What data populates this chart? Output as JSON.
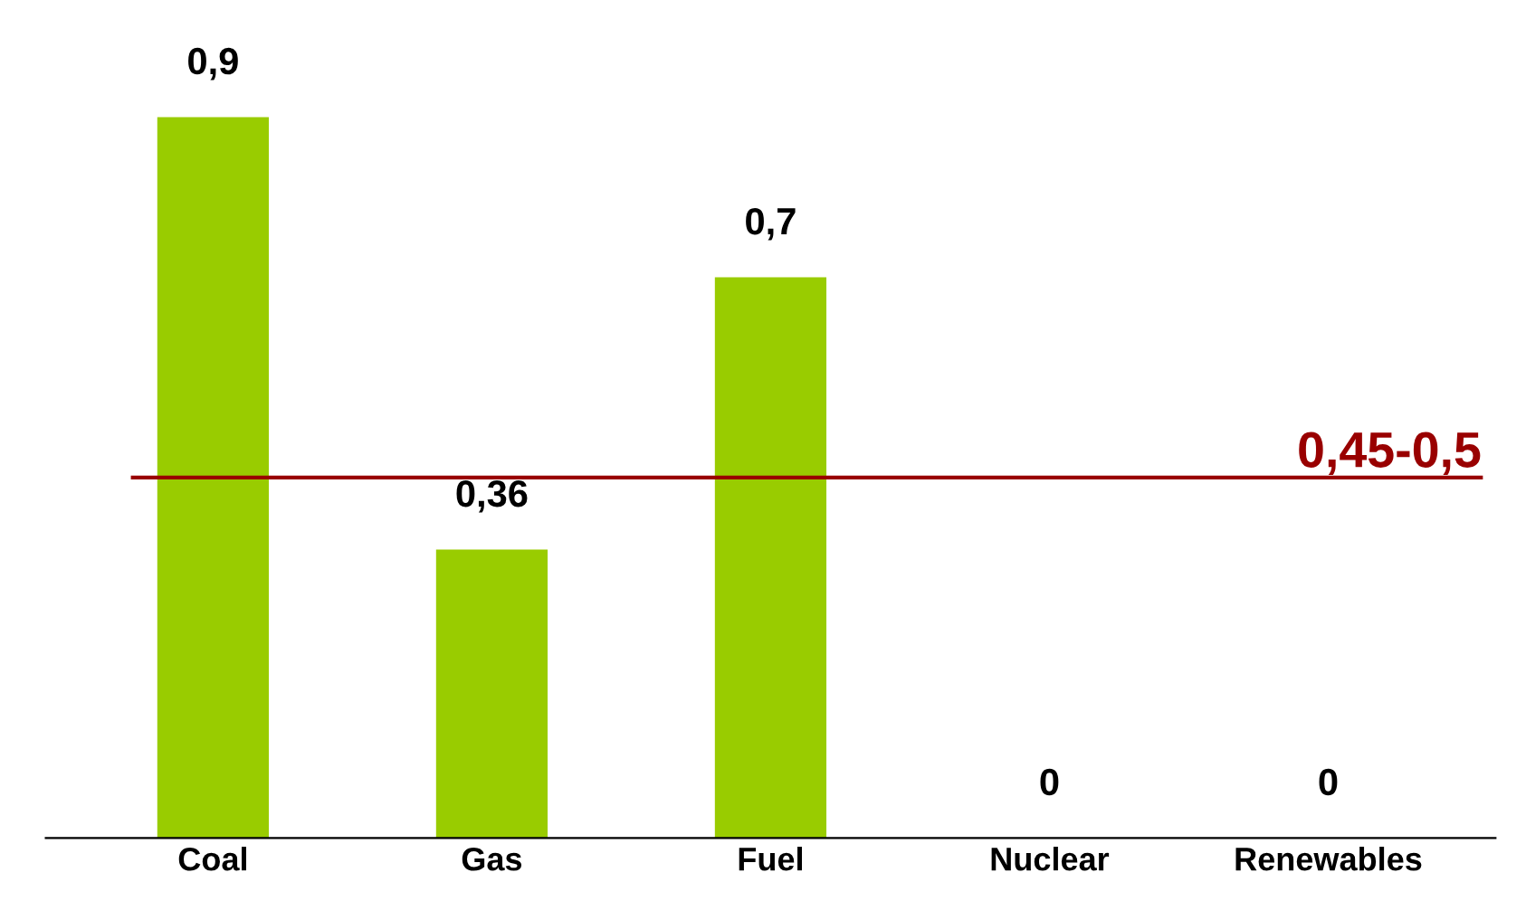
{
  "chart_data": {
    "type": "bar",
    "categories": [
      "Coal",
      "Gas",
      "Fuel",
      "Nuclear",
      "Renewables"
    ],
    "values": [
      0.9,
      0.36,
      0.7,
      0,
      0
    ],
    "value_labels": [
      "0,9",
      "0,36",
      "0,7",
      "0",
      "0"
    ],
    "color": "#99cc00",
    "ref_lines": [
      {
        "axis": "y",
        "value": 0.45,
        "label": "0,45-0,5",
        "color": "#990000",
        "line_style": "solid"
      }
    ],
    "grid": false,
    "legend": false
  }
}
